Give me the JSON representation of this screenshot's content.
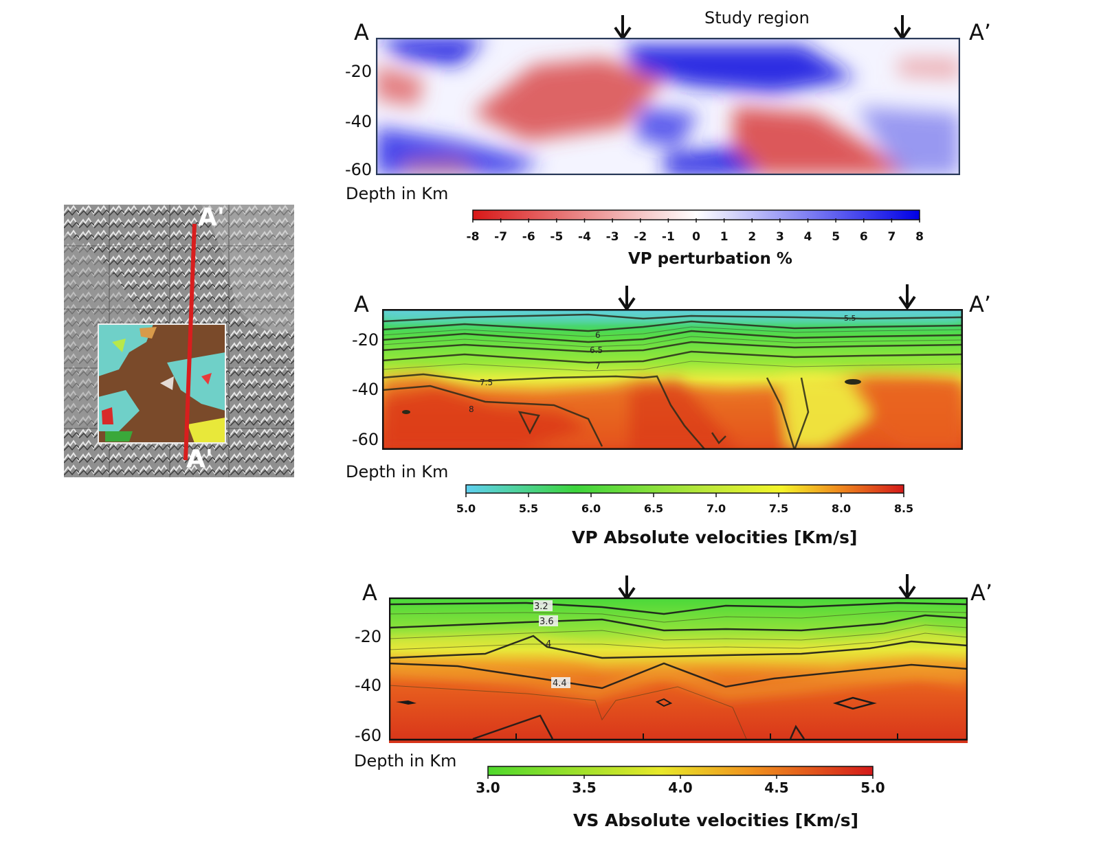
{
  "study_region_label": "Study region",
  "inset_map": {
    "labels": [
      "A'",
      "A'"
    ],
    "profile_color": "#d81e1e"
  },
  "chart_data": [
    {
      "type": "heatmap",
      "title": "",
      "endpoints": [
        "A",
        "A’"
      ],
      "ylabel": "Depth in Km",
      "y_ticks": [
        "-20",
        "-40",
        "-60"
      ],
      "ylim": [
        -60,
        0
      ],
      "colorbar": {
        "label": "VP perturbation %",
        "ticks": [
          "-8",
          "-7",
          "-6",
          "-5",
          "-4",
          "-3",
          "-2",
          "-1",
          "0",
          "1",
          "2",
          "3",
          "4",
          "5",
          "6",
          "7",
          "8"
        ],
        "range": [
          -8,
          8
        ],
        "colors": [
          "#d81818",
          "#ffffff",
          "#0000e6"
        ]
      },
      "study_region_arrows": 2
    },
    {
      "type": "heatmap",
      "title": "",
      "endpoints": [
        "A",
        "A’"
      ],
      "ylabel": "Depth in Km",
      "y_ticks": [
        "-20",
        "-40",
        "-60"
      ],
      "ylim": [
        -60,
        0
      ],
      "contour_labels": [
        "5.5",
        "6",
        "6.5",
        "7",
        "7.5",
        "8"
      ],
      "colorbar": {
        "label": "VP Absolute velocities [Km/s]",
        "ticks": [
          "5.0",
          "5.5",
          "6.0",
          "6.5",
          "7.0",
          "7.5",
          "8.0",
          "8.5"
        ],
        "range": [
          5.0,
          8.5
        ],
        "colors": [
          "#5fd0f0",
          "#3cd43c",
          "#f5f52a",
          "#f08c1e",
          "#d41a1a"
        ]
      },
      "study_region_arrows": 2
    },
    {
      "type": "heatmap",
      "title": "",
      "endpoints": [
        "A",
        "A’"
      ],
      "ylabel": "Depth in Km",
      "y_ticks": [
        "-20",
        "-40",
        "-60"
      ],
      "ylim": [
        -60,
        0
      ],
      "contour_labels": [
        "3.2",
        "3.6",
        "4",
        "4.4"
      ],
      "colorbar": {
        "label": "VS Absolute velocities [Km/s]",
        "ticks": [
          "3.0",
          "3.5",
          "4.0",
          "4.5",
          "5.0"
        ],
        "range": [
          3.0,
          5.0
        ],
        "colors": [
          "#4ed82c",
          "#e8e82a",
          "#f0941e",
          "#d41a1a"
        ]
      },
      "study_region_arrows": 2
    }
  ]
}
